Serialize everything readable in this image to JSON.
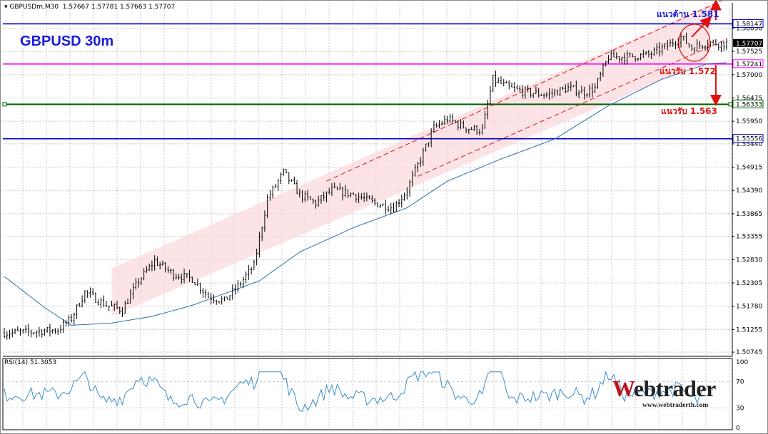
{
  "header": {
    "symbol": "GBPUSDm,M30",
    "ohlc": "1.57667 1.57781 1.57663 1.57707"
  },
  "title": "GBPUSD 30m",
  "annotations": {
    "resistance": "แนวต้าน 1.581",
    "support1": "แนวรับ 1.572",
    "support2": "แนวรับ 1.563"
  },
  "rsi": {
    "label": "RSI(14) 51.3053",
    "levels": [
      "100",
      "70",
      "30",
      "0"
    ],
    "level_values": [
      100,
      70,
      30,
      0
    ]
  },
  "logo": {
    "word_first": "W",
    "word_rest": "ebtrader",
    "url": "www.webtraderth.com"
  },
  "colors": {
    "candle": "#000000",
    "ma": "#2e6fae",
    "resistance_line": "#0000cd",
    "support1_line": "#ff00ff",
    "support2_line": "#006400",
    "low_line": "#0000cd",
    "channel_line": "#e01010",
    "channel_fill": "#fbd9dc",
    "annotation_red": "#e01010",
    "current_price_bg": "#000000"
  },
  "chart_data": {
    "type": "candlestick",
    "timeframe": "M30",
    "price_ticks": [
      1.5805,
      1.57525,
      1.57,
      1.56475,
      1.5595,
      1.5544,
      1.54915,
      1.5439,
      1.53865,
      1.53355,
      1.5283,
      1.52305,
      1.5178,
      1.51255,
      1.50745
    ],
    "price_tick_labels": [
      "1.58050",
      "1.57525",
      "1.57000",
      "1.56475",
      "1.55950",
      "1.55440",
      "1.54915",
      "1.54390",
      "1.53865",
      "1.53355",
      "1.52830",
      "1.52305",
      "1.51780",
      "1.51255",
      "1.50745"
    ],
    "ylim": [
      1.5065,
      1.5862
    ],
    "bar_count": 270,
    "horizontal_lines": [
      {
        "name": "resistance",
        "price": 1.58147,
        "label": "1.58147"
      },
      {
        "name": "support1",
        "price": 1.57241,
        "label": "1.57241"
      },
      {
        "name": "support2",
        "price": 1.56333,
        "label": "1.56333"
      },
      {
        "name": "low",
        "price": 1.55556,
        "label": "1.55556"
      }
    ],
    "current_price": {
      "price": 1.57707,
      "label": "1.57707"
    },
    "trend_path": [
      [
        0,
        1.5118
      ],
      [
        10,
        1.512
      ],
      [
        20,
        1.5125
      ],
      [
        25,
        1.515
      ],
      [
        30,
        1.521
      ],
      [
        38,
        1.518
      ],
      [
        44,
        1.517
      ],
      [
        50,
        1.5235
      ],
      [
        56,
        1.528
      ],
      [
        63,
        1.525
      ],
      [
        70,
        1.524
      ],
      [
        76,
        1.52
      ],
      [
        82,
        1.519
      ],
      [
        88,
        1.523
      ],
      [
        93,
        1.527
      ],
      [
        98,
        1.542
      ],
      [
        104,
        1.548
      ],
      [
        110,
        1.543
      ],
      [
        116,
        1.541
      ],
      [
        122,
        1.544
      ],
      [
        130,
        1.543
      ],
      [
        138,
        1.541
      ],
      [
        145,
        1.54
      ],
      [
        150,
        1.544
      ],
      [
        155,
        1.551
      ],
      [
        160,
        1.558
      ],
      [
        165,
        1.56
      ],
      [
        172,
        1.558
      ],
      [
        178,
        1.5575
      ],
      [
        182,
        1.569
      ],
      [
        188,
        1.567
      ],
      [
        195,
        1.566
      ],
      [
        202,
        1.5655
      ],
      [
        210,
        1.567
      ],
      [
        216,
        1.566
      ],
      [
        220,
        1.567
      ],
      [
        225,
        1.574
      ],
      [
        232,
        1.574
      ],
      [
        240,
        1.5745
      ],
      [
        247,
        1.5765
      ],
      [
        252,
        1.5785
      ],
      [
        256,
        1.576
      ],
      [
        262,
        1.5773
      ],
      [
        268,
        1.577
      ],
      [
        269,
        1.57707
      ]
    ],
    "ma_points": [
      [
        0,
        1.5245
      ],
      [
        15,
        1.5175
      ],
      [
        25,
        1.5135
      ],
      [
        40,
        1.514
      ],
      [
        55,
        1.5155
      ],
      [
        70,
        1.518
      ],
      [
        95,
        1.5235
      ],
      [
        110,
        1.53
      ],
      [
        130,
        1.5355
      ],
      [
        150,
        1.54
      ],
      [
        165,
        1.546
      ],
      [
        185,
        1.551
      ],
      [
        205,
        1.5555
      ],
      [
        225,
        1.563
      ],
      [
        245,
        1.569
      ],
      [
        262,
        1.5725
      ],
      [
        269,
        1.5727
      ]
    ],
    "channel": {
      "lower": [
        [
          44,
          1.5175
        ],
        [
          269,
          1.578
        ]
      ],
      "upper": [
        [
          120,
          1.546
        ],
        [
          269,
          1.5872
        ]
      ],
      "half_width": 0.0045
    },
    "rsi_series_seed": 51.3053
  }
}
